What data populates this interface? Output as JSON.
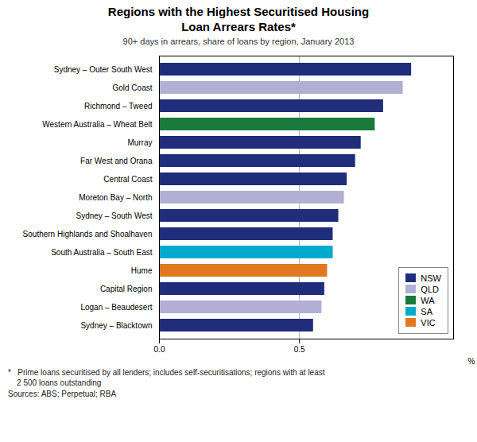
{
  "chart_data": {
    "type": "bar",
    "orientation": "horizontal",
    "title": "Regions with the Highest Securitised Housing\nLoan Arrears Rates*",
    "subtitle": "90+ days in arrears, share of loans by region, January 2013",
    "xlabel": "%",
    "footnote": "*   Prime loans securitised by all lenders; includes self-securitisations; regions with at least\n    2 500 loans outstanding\nSources: ABS; Perpetual; RBA",
    "categories": [
      "Sydney – Outer South West",
      "Gold Coast",
      "Richmond – Tweed",
      "Western Australia – Wheat Belt",
      "Murray",
      "Far West and Orana",
      "Central Coast",
      "Moreton Bay – North",
      "Sydney – South West",
      "Southern Highlands and Shoalhaven",
      "South Australia – South East",
      "Hume",
      "Capital Region",
      "Logan – Beaudesert",
      "Sydney – Blacktown"
    ],
    "values": [
      0.9,
      0.87,
      0.8,
      0.77,
      0.72,
      0.7,
      0.67,
      0.66,
      0.64,
      0.62,
      0.62,
      0.6,
      0.59,
      0.58,
      0.55
    ],
    "colors": [
      "#1f2d7b",
      "#b3aed4",
      "#1f2d7b",
      "#1a7a3c",
      "#1f2d7b",
      "#1f2d7b",
      "#1f2d7b",
      "#b3aed4",
      "#1f2d7b",
      "#1f2d7b",
      "#00aacc",
      "#e07820",
      "#1f2d7b",
      "#b3aed4",
      "#1f2d7b"
    ],
    "legend": "lower right",
    "legend_labels": [
      "NSW",
      "QLD",
      "WA",
      "SA",
      "VIC"
    ],
    "legend_colors": [
      "#1f2d7b",
      "#b3aed4",
      "#1a7a3c",
      "#00aacc",
      "#e07820"
    ],
    "xlim": [
      0.0,
      1.05
    ],
    "xticks": [
      {
        "value": 0.0,
        "label": "0.0"
      },
      0.5
    ],
    "grid": true
  }
}
